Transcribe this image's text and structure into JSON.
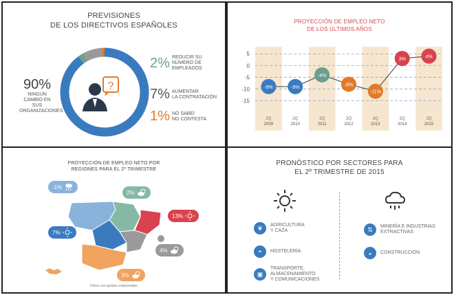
{
  "panel1": {
    "title_line1": "PREVISIONES",
    "title_line2": "DE LOS DIRECTIVOS ESPAÑOLES",
    "left_pct": "90%",
    "left_text": [
      "NINGÚN",
      "CAMBIO EN SUS",
      "ORGANIZACIONES"
    ],
    "items": [
      {
        "pct": "2%",
        "color": "#6b9e8e",
        "text": [
          "REDUCIR SU",
          "NÚMERO DE",
          "EMPLEADOS"
        ]
      },
      {
        "pct": "7%",
        "color": "#9a9a9a",
        "text": [
          "AUMENTAR",
          "LA CONTRATACIÓN"
        ]
      },
      {
        "pct": "1%",
        "color": "#e07a2a",
        "text": [
          "NO SABE/",
          "NO CONTESTA"
        ]
      }
    ],
    "ring_values": [
      90,
      2,
      7,
      1
    ],
    "ring_colors": [
      "#3a7bbf",
      "#6b9e8e",
      "#9a9a9a",
      "#e07a2a"
    ]
  },
  "panel2": {
    "title_line1": "PROYECCIÓN DE EMPLEO NETO",
    "title_line2": "DE LOS ÚLTIMOS AÑOS"
  },
  "chart_data": {
    "type": "line",
    "title": "PROYECCIÓN DE EMPLEO NETO DE LOS ÚLTIMOS AÑOS",
    "x": [
      "2009",
      "2010",
      "2011",
      "2012",
      "2013",
      "2014",
      "2015"
    ],
    "x_labels_top": [
      "2Q",
      "2Q",
      "2Q",
      "2Q",
      "2Q",
      "2Q",
      "2Q"
    ],
    "values": [
      -9,
      -9,
      -4,
      -8,
      -11,
      3,
      4
    ],
    "point_labels": [
      "-9%",
      "-9%",
      "-4%",
      "-8%",
      "-11%",
      "3%",
      "4%"
    ],
    "point_colors": [
      "#3a7bbf",
      "#3a7bbf",
      "#6b9e8e",
      "#e07a2a",
      "#e07a2a",
      "#d8434f",
      "#d8434f"
    ],
    "yticks": [
      5,
      0,
      -5,
      -10,
      -15
    ],
    "ylim": [
      -19,
      8
    ],
    "highlighted_columns": [
      "2009",
      "2011",
      "2013",
      "2015"
    ]
  },
  "panel3": {
    "title_line1": "PROYECCIÓN DE EMPLEO NETO POR",
    "title_line2": "REGIONES PARA EL 2º TRIMESTRE",
    "footnote": "Datos con ajustes estacionales",
    "badges": [
      {
        "label": "-1%",
        "color": "#8ab3dc",
        "icon": "rain-icon"
      },
      {
        "label": "2%",
        "color": "#86b9a4",
        "icon": "partly-cloudy-icon"
      },
      {
        "label": "13%",
        "color": "#d8434f",
        "icon": "sun-icon"
      },
      {
        "label": "7%",
        "color": "#3a7bbf",
        "icon": "sun-icon"
      },
      {
        "label": "4%",
        "color": "#9a9a9a",
        "icon": "partly-cloudy-icon"
      },
      {
        "label": "3%",
        "color": "#f0a35e",
        "icon": "partly-cloudy-icon"
      }
    ]
  },
  "panel4": {
    "title_line1": "PRONÓSTICO POR SECTORES PARA",
    "title_line2": "EL 2º TRIMESTRE DE 2015",
    "left_sectors": [
      {
        "text": [
          "AGRICULTURA",
          "Y CAZA"
        ],
        "icon": "wheat-icon"
      },
      {
        "text": [
          "HOSTELERÍA"
        ],
        "icon": "cloche-icon"
      },
      {
        "text": [
          "TRANSPORTE,",
          "ALMACENAMIENTO",
          "Y COMUNICACIONES"
        ],
        "icon": "bus-icon"
      }
    ],
    "right_sectors": [
      {
        "text": [
          "MINERÍA E INDUSTRIAS",
          "EXTRACTIVAS"
        ],
        "icon": "mining-icon"
      },
      {
        "text": [
          "CONSTRUCCIÓN"
        ],
        "icon": "helmet-icon"
      }
    ]
  }
}
